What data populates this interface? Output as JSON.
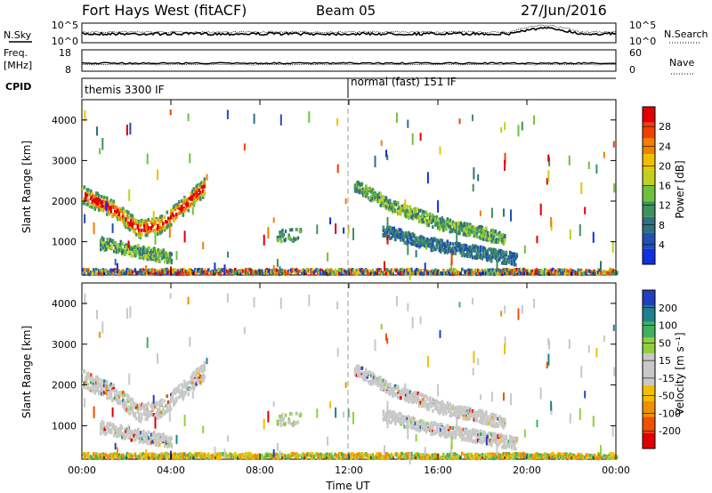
{
  "header": {
    "station": "Fort Hays West (fitACF)",
    "beam": "Beam 05",
    "date": "27/Jun/2016"
  },
  "noise_panel": {
    "left_label": "N.Sky",
    "right_label": "N.Search",
    "left_ticks": [
      "10^5",
      "10^0"
    ],
    "right_ticks": [
      "10^5",
      "10^0"
    ]
  },
  "freq_panel": {
    "left_label_1": "Freq.",
    "left_label_2": "[MHz]",
    "right_label": "Nave",
    "left_ticks": [
      "18",
      "8"
    ],
    "right_ticks": [
      "60",
      "0"
    ]
  },
  "cpid_panel": {
    "label": "CPID",
    "modes": [
      {
        "name": "themis 3300 IF",
        "start_hour": 0
      },
      {
        "name": "normal (fast) 151 IF",
        "start_hour": 12
      }
    ]
  },
  "chart_data": [
    {
      "type": "heatmap",
      "panel": "power",
      "ylabel": "Slant Range [km]",
      "ylim": [
        180,
        4500
      ],
      "yticks": [
        1000,
        2000,
        3000,
        4000
      ],
      "xlim": [
        0,
        24
      ],
      "colorbar": {
        "label": "Power [dB]",
        "ticks": [
          "4",
          "8",
          "12",
          "16",
          "20",
          "24",
          "28"
        ],
        "colors": [
          "#1030e0",
          "#2050b0",
          "#307080",
          "#409060",
          "#70c040",
          "#c0d020",
          "#f0c000",
          "#f08000",
          "#f04000",
          "#e00000"
        ]
      },
      "features": [
        {
          "hours": [
            0.0,
            1.5,
            2.5,
            3.5,
            4.5,
            5.5
          ],
          "ranges": [
            2200,
            1800,
            1350,
            1450,
            1900,
            2400
          ],
          "level": "high"
        },
        {
          "hours": [
            0.8,
            2.5,
            4.0
          ],
          "ranges": [
            1000,
            800,
            650
          ],
          "level": "mid"
        },
        {
          "hours": [
            12.3,
            14.0,
            16.0,
            18.0,
            19.0
          ],
          "ranges": [
            2400,
            1900,
            1500,
            1250,
            1100
          ],
          "level": "mid"
        },
        {
          "hours": [
            13.5,
            15.5,
            17.5,
            19.5
          ],
          "ranges": [
            1300,
            1000,
            800,
            600
          ],
          "level": "low"
        },
        {
          "hours": [
            0.0,
            24.0
          ],
          "ranges": [
            300,
            300
          ],
          "level": "mixed"
        }
      ]
    },
    {
      "type": "heatmap",
      "panel": "velocity",
      "ylabel": "Slant Range [km]",
      "ylim": [
        180,
        4500
      ],
      "yticks": [
        1000,
        2000,
        3000,
        4000
      ],
      "xlim": [
        0,
        24
      ],
      "xlabel": "Time UT",
      "xticks": [
        "00:00",
        "04:00",
        "08:00",
        "12:00",
        "16:00",
        "20:00",
        "00:00"
      ],
      "colorbar": {
        "label": "Velocity [m s⁻¹]",
        "ticks": [
          "200",
          "100",
          "50",
          "15",
          "-15",
          "-50",
          "-100",
          "-200"
        ],
        "colors": [
          "#2040c0",
          "#208090",
          "#40b060",
          "#90d040",
          "#c8c8c8",
          "#c8c8c8",
          "#f0c000",
          "#f09000",
          "#f05000",
          "#e00000"
        ]
      }
    }
  ]
}
